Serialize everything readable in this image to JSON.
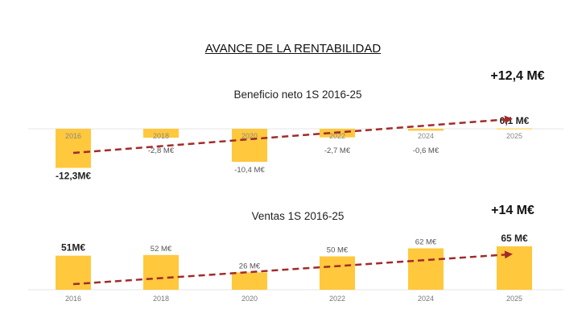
{
  "title": "AVANCE DE LA RENTABILIDAD",
  "colors": {
    "bar": "#FFC83D",
    "trend": "#A32A2A",
    "axis": "#E6E6E6",
    "label": "#555555"
  },
  "chart_data": [
    {
      "type": "bar",
      "title": "Beneficio neto 1S 2016-25",
      "change_label": "+12,4 M€",
      "categories": [
        "2016",
        "2018",
        "2020",
        "2022",
        "2024",
        "2025"
      ],
      "values": [
        -12.3,
        -2.8,
        -10.4,
        -2.7,
        -0.6,
        0.1
      ],
      "data_labels": [
        "-12,3M€",
        "-2,8 M€",
        "-10,4 M€",
        "-2,7 M€",
        "-0,6 M€",
        "0,1 M€"
      ],
      "emphasized": [
        true,
        false,
        false,
        false,
        false,
        true
      ],
      "trend_arrow": true
    },
    {
      "type": "bar",
      "title": "Ventas 1S 2016-25",
      "change_label": "+14 M€",
      "categories": [
        "2016",
        "2018",
        "2020",
        "2022",
        "2024",
        "2025"
      ],
      "values": [
        51,
        52,
        26,
        50,
        62,
        65
      ],
      "data_labels": [
        "51M€",
        "52 M€",
        "26 M€",
        "50 M€",
        "62 M€",
        "65 M€"
      ],
      "emphasized": [
        true,
        false,
        false,
        false,
        false,
        true
      ],
      "trend_arrow": true
    }
  ]
}
